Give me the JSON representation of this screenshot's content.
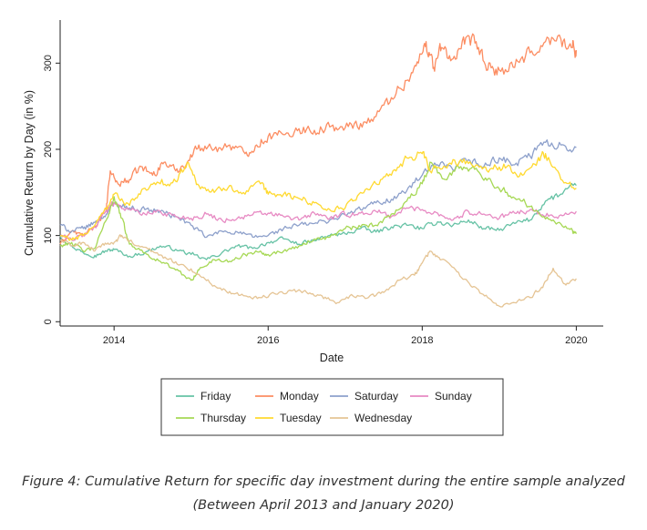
{
  "caption": {
    "line1": "Figure 4: Cumulative Return for specific day investment during the entire sample analyzed",
    "line2": "(Between April 2013 and January 2020)"
  },
  "chart_data": {
    "type": "line",
    "xlabel": "Date",
    "ylabel": "Cumulative Return by Day (in %)",
    "xlim": [
      2013.3,
      2020.35
    ],
    "ylim": [
      -5,
      350
    ],
    "xticks": [
      2014,
      2016,
      2018,
      2020
    ],
    "yticks": [
      0,
      100,
      200,
      300
    ],
    "grid": false,
    "legend_position": "bottom",
    "series": [
      {
        "name": "Friday",
        "color": "#66c2a5",
        "x": [
          2013.3,
          2013.45,
          2013.6,
          2013.75,
          2013.9,
          2014.0,
          2014.2,
          2014.4,
          2014.6,
          2014.8,
          2015.0,
          2015.2,
          2015.4,
          2015.6,
          2015.8,
          2016.0,
          2016.2,
          2016.4,
          2016.6,
          2016.8,
          2017.0,
          2017.2,
          2017.4,
          2017.6,
          2017.8,
          2018.0,
          2018.2,
          2018.4,
          2018.6,
          2018.8,
          2019.0,
          2019.2,
          2019.4,
          2019.6,
          2019.8,
          2020.0
        ],
        "y": [
          100,
          88,
          80,
          77,
          82,
          84,
          76,
          80,
          88,
          84,
          78,
          72,
          80,
          88,
          85,
          92,
          96,
          90,
          94,
          100,
          102,
          108,
          104,
          110,
          112,
          108,
          116,
          112,
          118,
          108,
          106,
          114,
          118,
          140,
          148,
          158
        ]
      },
      {
        "name": "Monday",
        "color": "#fc8d62",
        "x": [
          2013.3,
          2013.45,
          2013.6,
          2013.75,
          2013.9,
          2013.95,
          2014.05,
          2014.2,
          2014.35,
          2014.5,
          2014.65,
          2014.8,
          2014.95,
          2015.1,
          2015.3,
          2015.5,
          2015.7,
          2015.85,
          2016.0,
          2016.2,
          2016.4,
          2016.6,
          2016.8,
          2017.0,
          2017.2,
          2017.4,
          2017.6,
          2017.8,
          2017.95,
          2018.05,
          2018.15,
          2018.25,
          2018.4,
          2018.55,
          2018.7,
          2018.85,
          2019.0,
          2019.2,
          2019.4,
          2019.6,
          2019.8,
          2019.95,
          2020.0
        ],
        "y": [
          90,
          105,
          100,
          110,
          130,
          175,
          160,
          165,
          180,
          170,
          185,
          175,
          185,
          205,
          200,
          205,
          195,
          205,
          215,
          217,
          224,
          222,
          226,
          225,
          230,
          238,
          260,
          280,
          300,
          325,
          295,
          318,
          305,
          322,
          325,
          292,
          292,
          295,
          312,
          325,
          328,
          318,
          315
        ]
      },
      {
        "name": "Saturday",
        "color": "#8da0cb",
        "x": [
          2013.3,
          2013.45,
          2013.6,
          2013.75,
          2013.9,
          2014.0,
          2014.2,
          2014.4,
          2014.6,
          2014.8,
          2015.0,
          2015.2,
          2015.4,
          2015.6,
          2015.8,
          2016.0,
          2016.2,
          2016.4,
          2016.6,
          2016.8,
          2017.0,
          2017.2,
          2017.4,
          2017.6,
          2017.8,
          2018.0,
          2018.2,
          2018.4,
          2018.6,
          2018.8,
          2019.0,
          2019.2,
          2019.4,
          2019.6,
          2019.8,
          2020.0
        ],
        "y": [
          112,
          105,
          108,
          115,
          125,
          138,
          132,
          130,
          128,
          122,
          112,
          98,
          105,
          104,
          98,
          100,
          108,
          112,
          114,
          118,
          124,
          130,
          138,
          142,
          152,
          170,
          182,
          176,
          188,
          180,
          190,
          182,
          192,
          208,
          205,
          202
        ]
      },
      {
        "name": "Sunday",
        "color": "#e78ac3",
        "x": [
          2013.3,
          2013.45,
          2013.6,
          2013.75,
          2013.9,
          2014.0,
          2014.2,
          2014.4,
          2014.6,
          2014.8,
          2015.0,
          2015.2,
          2015.4,
          2015.6,
          2015.8,
          2016.0,
          2016.2,
          2016.4,
          2016.6,
          2016.8,
          2017.0,
          2017.2,
          2017.4,
          2017.6,
          2017.8,
          2018.0,
          2018.2,
          2018.4,
          2018.6,
          2018.8,
          2019.0,
          2019.2,
          2019.4,
          2019.6,
          2019.8,
          2020.0
        ],
        "y": [
          100,
          95,
          100,
          110,
          130,
          138,
          130,
          125,
          128,
          122,
          120,
          125,
          118,
          120,
          124,
          126,
          122,
          118,
          126,
          120,
          124,
          126,
          128,
          122,
          132,
          130,
          126,
          118,
          128,
          125,
          120,
          126,
          130,
          122,
          124,
          128
        ]
      },
      {
        "name": "Thursday",
        "color": "#a6d854",
        "x": [
          2013.3,
          2013.45,
          2013.6,
          2013.75,
          2013.9,
          2014.0,
          2014.1,
          2014.2,
          2014.4,
          2014.6,
          2014.8,
          2015.0,
          2015.1,
          2015.3,
          2015.5,
          2015.7,
          2015.9,
          2016.0,
          2016.2,
          2016.4,
          2016.6,
          2016.8,
          2017.0,
          2017.2,
          2017.4,
          2017.6,
          2017.8,
          2018.0,
          2018.1,
          2018.3,
          2018.5,
          2018.7,
          2018.9,
          2019.1,
          2019.3,
          2019.5,
          2019.7,
          2019.9,
          2020.0
        ],
        "y": [
          88,
          92,
          82,
          85,
          118,
          145,
          120,
          90,
          80,
          70,
          60,
          48,
          60,
          72,
          70,
          78,
          82,
          78,
          82,
          88,
          96,
          98,
          108,
          110,
          112,
          125,
          140,
          160,
          185,
          165,
          180,
          178,
          162,
          150,
          140,
          128,
          118,
          108,
          102
        ]
      },
      {
        "name": "Tuesday",
        "color": "#ffd92f",
        "x": [
          2013.3,
          2013.45,
          2013.6,
          2013.75,
          2013.9,
          2014.0,
          2014.2,
          2014.4,
          2014.6,
          2014.8,
          2014.95,
          2015.1,
          2015.3,
          2015.5,
          2015.7,
          2015.9,
          2016.0,
          2016.2,
          2016.4,
          2016.6,
          2016.8,
          2017.0,
          2017.2,
          2017.4,
          2017.6,
          2017.8,
          2018.0,
          2018.1,
          2018.3,
          2018.5,
          2018.7,
          2018.9,
          2019.1,
          2019.3,
          2019.5,
          2019.6,
          2019.8,
          2020.0
        ],
        "y": [
          100,
          95,
          100,
          112,
          132,
          148,
          135,
          155,
          160,
          163,
          185,
          158,
          150,
          158,
          148,
          160,
          148,
          148,
          143,
          138,
          130,
          132,
          150,
          160,
          170,
          190,
          195,
          175,
          180,
          188,
          182,
          178,
          180,
          170,
          188,
          195,
          165,
          155
        ]
      },
      {
        "name": "Wednesday",
        "color": "#e5c494",
        "x": [
          2013.3,
          2013.45,
          2013.6,
          2013.75,
          2013.9,
          2014.0,
          2014.1,
          2014.3,
          2014.5,
          2014.7,
          2014.9,
          2015.1,
          2015.3,
          2015.5,
          2015.7,
          2015.9,
          2016.1,
          2016.3,
          2016.5,
          2016.7,
          2016.9,
          2017.1,
          2017.3,
          2017.5,
          2017.7,
          2017.9,
          2018.0,
          2018.1,
          2018.25,
          2018.45,
          2018.65,
          2018.85,
          2019.0,
          2019.2,
          2019.4,
          2019.55,
          2019.7,
          2019.85,
          2020.0
        ],
        "y": [
          95,
          88,
          92,
          82,
          90,
          92,
          100,
          88,
          82,
          72,
          66,
          55,
          42,
          35,
          30,
          28,
          32,
          36,
          34,
          30,
          22,
          30,
          28,
          34,
          48,
          54,
          68,
          82,
          72,
          58,
          40,
          28,
          18,
          22,
          28,
          40,
          62,
          44,
          50
        ]
      }
    ]
  }
}
